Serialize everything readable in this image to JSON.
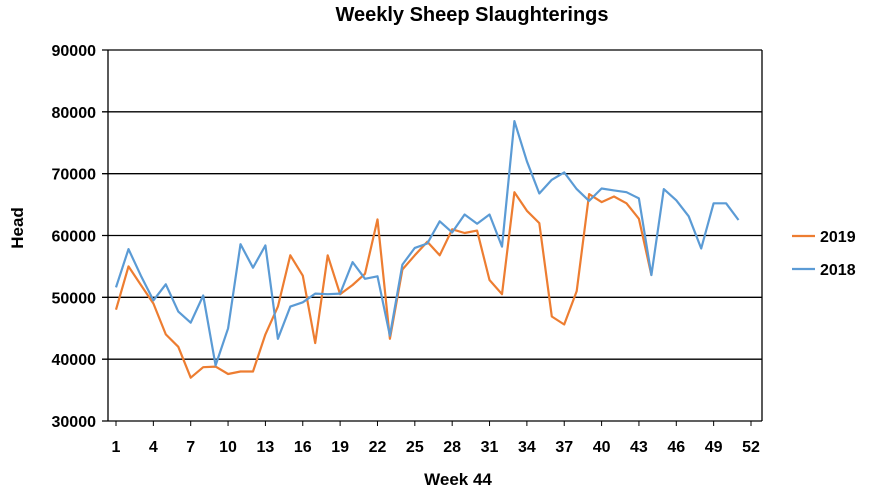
{
  "chart_data": {
    "type": "line",
    "title": "Weekly Sheep Slaughterings",
    "xlabel": "Week 44",
    "ylabel": "Head",
    "ylim": [
      30000,
      90000
    ],
    "yticks": [
      "30000",
      "40000",
      "50000",
      "60000",
      "70000",
      "80000",
      "90000"
    ],
    "xlim": [
      1,
      52
    ],
    "xticks": [
      "1",
      "4",
      "7",
      "10",
      "13",
      "16",
      "19",
      "22",
      "25",
      "28",
      "31",
      "34",
      "37",
      "40",
      "43",
      "46",
      "49",
      "52"
    ],
    "grid": "horizontal",
    "legend": "right",
    "series": [
      {
        "name": "2019",
        "color": "#ED7D31",
        "values": [
          48000,
          55000,
          52000,
          49000,
          44000,
          42000,
          37000,
          38700,
          38800,
          37600,
          38000,
          38000,
          44000,
          48500,
          56800,
          53500,
          42600,
          56800,
          50500,
          52000,
          53800,
          62600,
          43300,
          54500,
          56800,
          59000,
          56800,
          61000,
          60400,
          60800,
          52800,
          50500,
          67000,
          64000,
          62000,
          46900,
          45600,
          51000,
          66700,
          65400,
          66300,
          65200,
          62700,
          53600
        ]
      },
      {
        "name": "2018",
        "color": "#5B9BD5",
        "values": [
          51600,
          57800,
          53500,
          49500,
          52100,
          47700,
          45900,
          50300,
          39000,
          45000,
          58600,
          54800,
          58400,
          43300,
          48500,
          49200,
          50600,
          50500,
          50600,
          55700,
          53000,
          53400,
          43800,
          55300,
          58000,
          58700,
          62300,
          60500,
          63400,
          61900,
          63400,
          58200,
          78500,
          72000,
          66800,
          69000,
          70200,
          67500,
          65600,
          67600,
          67300,
          67000,
          66000,
          53600,
          67500,
          65700,
          63100,
          57900,
          65200,
          65200,
          62500
        ]
      }
    ]
  }
}
